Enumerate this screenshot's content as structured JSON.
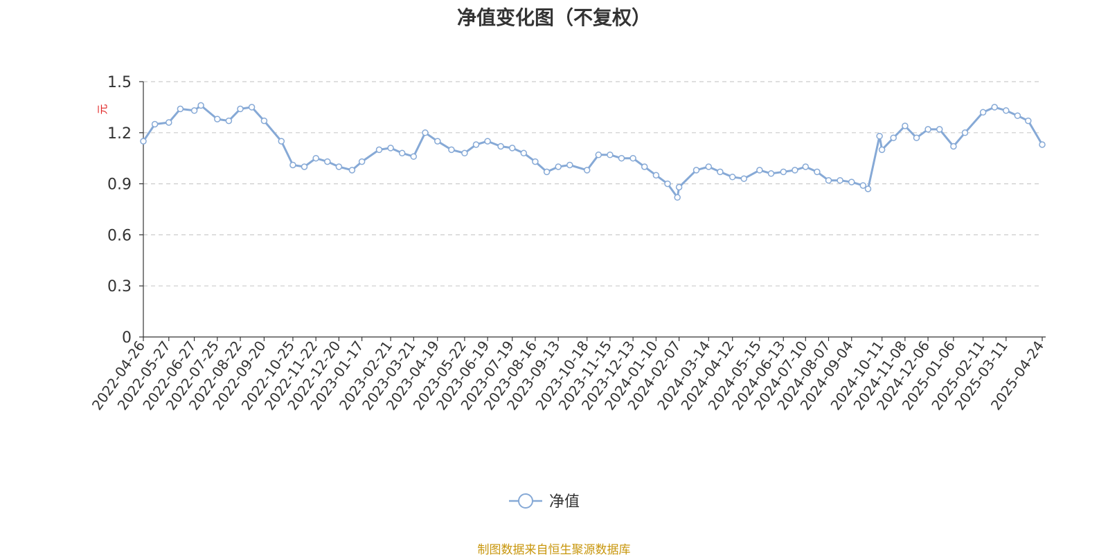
{
  "colors": {
    "series_line": "#86a9d6",
    "axis_text": "#333333",
    "grid": "#cccccc",
    "y_unit": "#e02020",
    "source_text": "#c8960c"
  },
  "chart_data": {
    "type": "line",
    "title": "净值变化图（不复权）",
    "ylabel": "元",
    "xlabel": "",
    "ylim": [
      0,
      1.5
    ],
    "yticks": [
      "0",
      "0.3",
      "0.6",
      "0.9",
      "1.2",
      "1.5"
    ],
    "grid": true,
    "legend_position": "bottom-center",
    "x_tick_labels": [
      "2022-04-26",
      "2022-05-27",
      "2022-06-27",
      "2022-07-25",
      "2022-08-22",
      "2022-09-20",
      "2022-10-25",
      "2022-11-22",
      "2022-12-20",
      "2023-01-17",
      "2023-02-21",
      "2023-03-21",
      "2023-04-19",
      "2023-05-22",
      "2023-06-19",
      "2023-07-19",
      "2023-08-16",
      "2023-09-13",
      "2023-10-18",
      "2023-11-15",
      "2023-12-13",
      "2024-01-10",
      "2024-02-07",
      "2024-03-14",
      "2024-04-12",
      "2024-05-15",
      "2024-06-13",
      "2024-07-10",
      "2024-08-07",
      "2024-09-04",
      "2024-10-11",
      "2024-11-08",
      "2024-12-06",
      "2025-01-06",
      "2025-02-11",
      "2025-03-11",
      "2025-04-24"
    ],
    "series": [
      {
        "name": "净值",
        "x": [
          "2022-04-26",
          "2022-05-10",
          "2022-05-27",
          "2022-06-10",
          "2022-06-27",
          "2022-07-05",
          "2022-07-25",
          "2022-08-08",
          "2022-08-22",
          "2022-09-05",
          "2022-09-20",
          "2022-10-11",
          "2022-10-25",
          "2022-11-08",
          "2022-11-22",
          "2022-12-06",
          "2022-12-20",
          "2023-01-05",
          "2023-01-17",
          "2023-02-07",
          "2023-02-21",
          "2023-03-07",
          "2023-03-21",
          "2023-04-04",
          "2023-04-19",
          "2023-05-06",
          "2023-05-22",
          "2023-06-05",
          "2023-06-19",
          "2023-07-05",
          "2023-07-19",
          "2023-08-02",
          "2023-08-16",
          "2023-08-30",
          "2023-09-13",
          "2023-09-27",
          "2023-10-18",
          "2023-11-01",
          "2023-11-15",
          "2023-11-29",
          "2023-12-13",
          "2023-12-27",
          "2024-01-10",
          "2024-01-24",
          "2024-02-05",
          "2024-02-07",
          "2024-02-28",
          "2024-03-14",
          "2024-03-28",
          "2024-04-12",
          "2024-04-26",
          "2024-05-15",
          "2024-05-29",
          "2024-06-13",
          "2024-06-27",
          "2024-07-10",
          "2024-07-24",
          "2024-08-07",
          "2024-08-21",
          "2024-09-04",
          "2024-09-18",
          "2024-09-24",
          "2024-10-08",
          "2024-10-11",
          "2024-10-25",
          "2024-11-08",
          "2024-11-22",
          "2024-12-06",
          "2024-12-20",
          "2025-01-06",
          "2025-01-20",
          "2025-02-11",
          "2025-02-25",
          "2025-03-11",
          "2025-03-25",
          "2025-04-07",
          "2025-04-24"
        ],
        "values": [
          1.15,
          1.25,
          1.26,
          1.34,
          1.33,
          1.36,
          1.28,
          1.27,
          1.34,
          1.35,
          1.27,
          1.15,
          1.01,
          1.0,
          1.05,
          1.03,
          1.0,
          0.98,
          1.03,
          1.1,
          1.11,
          1.08,
          1.06,
          1.2,
          1.15,
          1.1,
          1.08,
          1.13,
          1.15,
          1.12,
          1.11,
          1.08,
          1.03,
          0.97,
          1.0,
          1.01,
          0.98,
          1.07,
          1.07,
          1.05,
          1.05,
          1.0,
          0.95,
          0.9,
          0.82,
          0.88,
          0.98,
          1.0,
          0.97,
          0.94,
          0.93,
          0.98,
          0.96,
          0.97,
          0.98,
          1.0,
          0.97,
          0.92,
          0.92,
          0.91,
          0.89,
          0.87,
          1.18,
          1.1,
          1.17,
          1.24,
          1.17,
          1.22,
          1.22,
          1.12,
          1.2,
          1.32,
          1.35,
          1.33,
          1.3,
          1.27,
          1.13
        ]
      }
    ]
  },
  "legend": {
    "label": "净值"
  },
  "footer": {
    "source": "制图数据来自恒生聚源数据库"
  }
}
